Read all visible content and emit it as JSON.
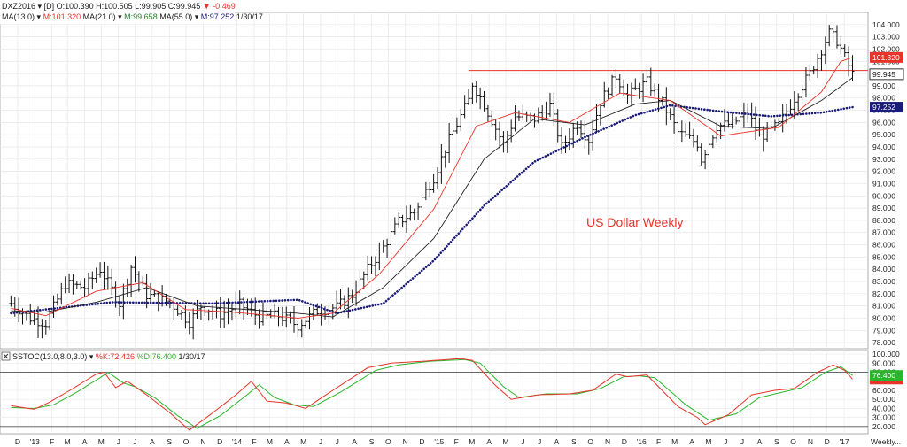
{
  "main_header": {
    "symbol": "DXZ2016",
    "period": "[D]",
    "ohlc": "O:100.390 H:100.505 L:99.905 C:99.945",
    "change": "-0.469",
    "ma_label": "MA(13.0)",
    "ma13": "M:101.320",
    "ma21_label": "MA(21.0)",
    "ma21": "M:99.658",
    "ma55_label": "MA(55.0)",
    "ma55": "M:97.252",
    "date": "1/30/17"
  },
  "sub_header": {
    "name": "SSTOC(13.0,8.0,3.0)",
    "k": "%K:72.426",
    "d": "%D:76.400",
    "date": "1/30/17"
  },
  "annotation": "US Dollar Weekly",
  "footer_label": "Weekly...",
  "colors": {
    "ma13": "#e8332a",
    "ma21": "#222222",
    "ma55": "#1b1b7a",
    "k": "#e8332a",
    "d": "#2bb52b",
    "resistance": "#e8332a"
  },
  "chart_data": [
    {
      "type": "line",
      "title": "",
      "subtitle": "",
      "frequency": "weekly",
      "y_ticks": [
        78.0,
        79.0,
        80.0,
        81.0,
        82.0,
        83.0,
        84.0,
        85.0,
        86.0,
        87.0,
        88.0,
        89.0,
        90.0,
        91.0,
        92.0,
        93.0,
        94.0,
        95.0,
        96.0,
        97.0,
        98.0,
        99.0,
        100.0,
        101.0,
        102.0,
        103.0,
        104.0
      ],
      "ylim": [
        77.5,
        105.0
      ],
      "x_ticks": [
        "D",
        "'13",
        "F",
        "M",
        "A",
        "M",
        "J",
        "J",
        "A",
        "S",
        "O",
        "N",
        "D",
        "'14",
        "F",
        "M",
        "A",
        "M",
        "J",
        "J",
        "A",
        "S",
        "O",
        "N",
        "D",
        "'15",
        "F",
        "M",
        "A",
        "M",
        "J",
        "J",
        "A",
        "S",
        "O",
        "N",
        "D",
        "'16",
        "F",
        "M",
        "A",
        "M",
        "J",
        "J",
        "A",
        "S",
        "O",
        "N",
        "D",
        "'17"
      ],
      "price_anchors": [
        [
          "2012-12-03",
          81.2
        ],
        [
          "2013-01-07",
          80.0
        ],
        [
          "2013-02-04",
          79.6
        ],
        [
          "2013-03-11",
          82.8
        ],
        [
          "2013-04-15",
          82.5
        ],
        [
          "2013-05-13",
          84.0
        ],
        [
          "2013-06-17",
          81.2
        ],
        [
          "2013-07-08",
          84.2
        ],
        [
          "2013-08-05",
          81.9
        ],
        [
          "2013-09-16",
          81.3
        ],
        [
          "2013-10-21",
          79.7
        ],
        [
          "2013-11-11",
          81.0
        ],
        [
          "2013-12-16",
          80.3
        ],
        [
          "2014-01-20",
          81.1
        ],
        [
          "2014-02-24",
          80.1
        ],
        [
          "2014-03-31",
          80.2
        ],
        [
          "2014-05-05",
          79.4
        ],
        [
          "2014-06-09",
          80.6
        ],
        [
          "2014-07-14",
          80.9
        ],
        [
          "2014-08-11",
          81.9
        ],
        [
          "2014-09-08",
          84.0
        ],
        [
          "2014-10-06",
          85.8
        ],
        [
          "2014-11-03",
          87.9
        ],
        [
          "2014-12-01",
          88.7
        ],
        [
          "2015-01-05",
          91.5
        ],
        [
          "2015-02-02",
          94.6
        ],
        [
          "2015-03-09",
          97.8
        ],
        [
          "2015-03-16",
          99.2
        ],
        [
          "2015-04-06",
          97.5
        ],
        [
          "2015-05-11",
          94.2
        ],
        [
          "2015-06-01",
          96.5
        ],
        [
          "2015-07-06",
          96.3
        ],
        [
          "2015-08-03",
          97.4
        ],
        [
          "2015-08-24",
          94.0
        ],
        [
          "2015-09-21",
          95.9
        ],
        [
          "2015-10-12",
          94.6
        ],
        [
          "2015-11-02",
          97.7
        ],
        [
          "2015-11-30",
          99.8
        ],
        [
          "2015-12-21",
          98.2
        ],
        [
          "2016-01-25",
          99.3
        ],
        [
          "2016-02-22",
          97.6
        ],
        [
          "2016-03-21",
          95.2
        ],
        [
          "2016-04-25",
          94.3
        ],
        [
          "2016-05-02",
          93.0
        ],
        [
          "2016-05-30",
          95.7
        ],
        [
          "2016-06-27",
          95.9
        ],
        [
          "2016-07-25",
          96.8
        ],
        [
          "2016-08-15",
          94.8
        ],
        [
          "2016-09-19",
          95.8
        ],
        [
          "2016-10-17",
          98.0
        ],
        [
          "2016-11-14",
          100.0
        ],
        [
          "2016-12-19",
          103.3
        ],
        [
          "2017-01-02",
          102.7
        ],
        [
          "2017-01-30",
          99.945
        ]
      ],
      "ma55_anchors": [
        [
          "2012-12-03",
          80.4
        ],
        [
          "2013-06-03",
          81.3
        ],
        [
          "2013-12-02",
          81.2
        ],
        [
          "2014-05-05",
          81.5
        ],
        [
          "2014-07-14",
          80.4
        ],
        [
          "2014-10-06",
          81.2
        ],
        [
          "2015-01-05",
          84.7
        ],
        [
          "2015-04-06",
          89.2
        ],
        [
          "2015-07-06",
          92.8
        ],
        [
          "2015-10-05",
          94.8
        ],
        [
          "2016-01-04",
          96.6
        ],
        [
          "2016-03-07",
          97.4
        ],
        [
          "2016-06-06",
          96.9
        ],
        [
          "2016-09-05",
          96.5
        ],
        [
          "2016-12-05",
          96.8
        ],
        [
          "2017-01-30",
          97.252
        ]
      ],
      "ma13_anchors": [
        [
          "2012-12-03",
          80.8
        ],
        [
          "2013-02-04",
          80.2
        ],
        [
          "2013-05-06",
          82.2
        ],
        [
          "2013-07-29",
          82.9
        ],
        [
          "2013-10-14",
          80.7
        ],
        [
          "2014-01-06",
          80.5
        ],
        [
          "2014-05-05",
          80.0
        ],
        [
          "2014-07-07",
          80.4
        ],
        [
          "2014-09-29",
          83.6
        ],
        [
          "2015-01-05",
          88.9
        ],
        [
          "2015-03-23",
          95.7
        ],
        [
          "2015-06-01",
          96.8
        ],
        [
          "2015-09-07",
          96.0
        ],
        [
          "2015-12-07",
          98.4
        ],
        [
          "2016-03-07",
          97.8
        ],
        [
          "2016-06-06",
          94.9
        ],
        [
          "2016-09-19",
          95.6
        ],
        [
          "2016-12-05",
          98.5
        ],
        [
          "2017-01-09",
          101.0
        ],
        [
          "2017-01-30",
          101.32
        ]
      ],
      "ma21_anchors": [
        [
          "2012-12-03",
          80.6
        ],
        [
          "2013-02-04",
          80.5
        ],
        [
          "2013-05-06",
          81.3
        ],
        [
          "2013-08-05",
          82.5
        ],
        [
          "2013-11-04",
          81.0
        ],
        [
          "2014-02-03",
          80.7
        ],
        [
          "2014-05-05",
          80.4
        ],
        [
          "2014-07-07",
          80.1
        ],
        [
          "2014-10-06",
          82.5
        ],
        [
          "2015-01-05",
          86.5
        ],
        [
          "2015-04-06",
          93.0
        ],
        [
          "2015-07-06",
          96.3
        ],
        [
          "2015-10-05",
          95.8
        ],
        [
          "2016-01-04",
          97.5
        ],
        [
          "2016-03-07",
          97.8
        ],
        [
          "2016-06-06",
          95.7
        ],
        [
          "2016-09-05",
          95.5
        ],
        [
          "2016-12-05",
          97.8
        ],
        [
          "2017-01-30",
          99.658
        ]
      ],
      "resistance": {
        "value": 100.25,
        "from": "2015-03-09",
        "to": "2017-02-27"
      },
      "last_values": {
        "ma13": 101.32,
        "close": 99.945,
        "ma55": 97.252
      }
    },
    {
      "type": "line",
      "title": "",
      "y_ticks": [
        20.0,
        30.0,
        40.0,
        50.0,
        60.0,
        70.0,
        80.0,
        90.0,
        100.0
      ],
      "ylim": [
        12,
        104
      ],
      "hlines": [
        80.0,
        20.0
      ],
      "series": [
        {
          "name": "%K",
          "anchors": [
            [
              "2012-12-03",
              43
            ],
            [
              "2013-01-14",
              39
            ],
            [
              "2013-02-11",
              47
            ],
            [
              "2013-03-25",
              62
            ],
            [
              "2013-05-06",
              78
            ],
            [
              "2013-05-20",
              80
            ],
            [
              "2013-06-10",
              63
            ],
            [
              "2013-07-01",
              70
            ],
            [
              "2013-08-05",
              55
            ],
            [
              "2013-09-16",
              35
            ],
            [
              "2013-10-21",
              16
            ],
            [
              "2013-12-02",
              35
            ],
            [
              "2014-01-13",
              55
            ],
            [
              "2014-02-10",
              70
            ],
            [
              "2014-03-10",
              48
            ],
            [
              "2014-04-14",
              46
            ],
            [
              "2014-05-19",
              40
            ],
            [
              "2014-07-07",
              60
            ],
            [
              "2014-09-08",
              85
            ],
            [
              "2014-10-20",
              90
            ],
            [
              "2014-12-15",
              92
            ],
            [
              "2015-02-23",
              95
            ],
            [
              "2015-03-16",
              93
            ],
            [
              "2015-04-27",
              65
            ],
            [
              "2015-05-25",
              50
            ],
            [
              "2015-07-13",
              55
            ],
            [
              "2015-09-07",
              56
            ],
            [
              "2015-10-19",
              60
            ],
            [
              "2015-11-30",
              78
            ],
            [
              "2015-12-21",
              75
            ],
            [
              "2016-01-25",
              77
            ],
            [
              "2016-03-21",
              42
            ],
            [
              "2016-04-25",
              30
            ],
            [
              "2016-05-09",
              22
            ],
            [
              "2016-06-20",
              33
            ],
            [
              "2016-08-01",
              55
            ],
            [
              "2016-09-12",
              60
            ],
            [
              "2016-10-17",
              62
            ],
            [
              "2016-11-28",
              80
            ],
            [
              "2016-12-26",
              88
            ],
            [
              "2017-01-16",
              82
            ],
            [
              "2017-01-30",
              72.426
            ]
          ]
        },
        {
          "name": "%D",
          "anchors": [
            [
              "2012-12-03",
              41
            ],
            [
              "2013-01-14",
              40
            ],
            [
              "2013-02-18",
              44
            ],
            [
              "2013-04-01",
              58
            ],
            [
              "2013-05-13",
              74
            ],
            [
              "2013-05-27",
              80
            ],
            [
              "2013-06-24",
              68
            ],
            [
              "2013-07-15",
              64
            ],
            [
              "2013-08-19",
              52
            ],
            [
              "2013-09-30",
              32
            ],
            [
              "2013-11-04",
              18
            ],
            [
              "2013-12-16",
              32
            ],
            [
              "2014-01-27",
              52
            ],
            [
              "2014-02-24",
              66
            ],
            [
              "2014-03-24",
              52
            ],
            [
              "2014-04-28",
              44
            ],
            [
              "2014-06-02",
              42
            ],
            [
              "2014-07-21",
              58
            ],
            [
              "2014-09-22",
              82
            ],
            [
              "2014-11-03",
              88
            ],
            [
              "2014-12-29",
              92
            ],
            [
              "2015-03-02",
              94
            ],
            [
              "2015-03-30",
              90
            ],
            [
              "2015-05-11",
              64
            ],
            [
              "2015-06-08",
              52
            ],
            [
              "2015-07-27",
              56
            ],
            [
              "2015-09-21",
              56
            ],
            [
              "2015-11-02",
              62
            ],
            [
              "2015-12-14",
              75
            ],
            [
              "2016-01-11",
              76
            ],
            [
              "2016-02-08",
              74
            ],
            [
              "2016-04-04",
              44
            ],
            [
              "2016-05-16",
              27
            ],
            [
              "2016-07-04",
              34
            ],
            [
              "2016-08-15",
              52
            ],
            [
              "2016-09-26",
              58
            ],
            [
              "2016-10-31",
              63
            ],
            [
              "2016-12-12",
              80
            ],
            [
              "2017-01-09",
              86
            ],
            [
              "2017-01-30",
              76.4
            ]
          ]
        }
      ],
      "last_values": {
        "k": 72.426,
        "d": 76.4
      }
    }
  ]
}
